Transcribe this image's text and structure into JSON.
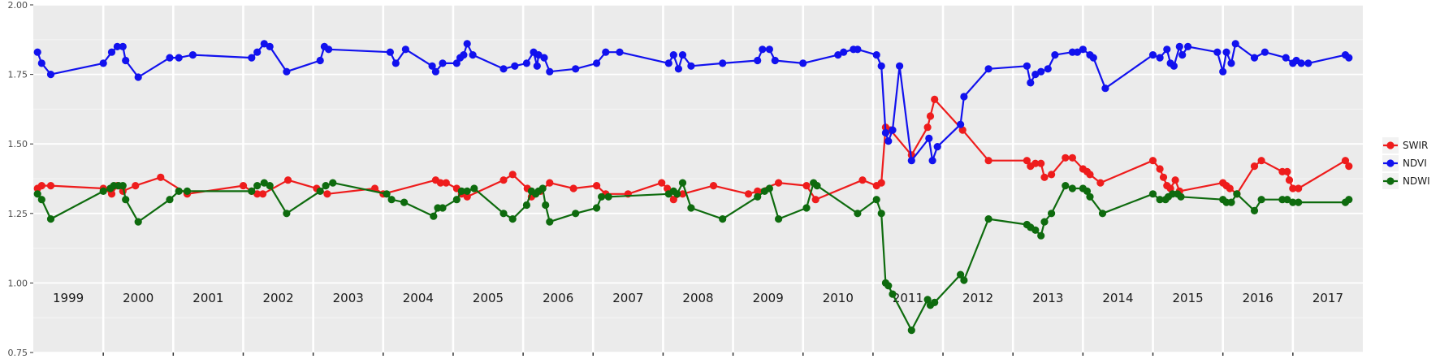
{
  "chart_data": {
    "type": "line",
    "x_unit": "year",
    "xlim": [
      1998.5,
      2017.5
    ],
    "ylim": [
      0.75,
      2.0
    ],
    "y_ticks": [
      {
        "value": 0.75,
        "label": "0.75"
      },
      {
        "value": 1.0,
        "label": "1.00"
      },
      {
        "value": 1.25,
        "label": "1.25"
      },
      {
        "value": 1.5,
        "label": "1.50"
      },
      {
        "value": 1.75,
        "label": "1.75"
      },
      {
        "value": 2.0,
        "label": "2.00"
      }
    ],
    "year_labels": [
      "1999",
      "2000",
      "2001",
      "2002",
      "2003",
      "2004",
      "2005",
      "2006",
      "2007",
      "2008",
      "2009",
      "2010",
      "2011",
      "2012",
      "2013",
      "2014",
      "2015",
      "2016",
      "2017"
    ],
    "grid": true,
    "legend_position": "right",
    "series": [
      {
        "name": "SWIR",
        "color": "#ee1c1c",
        "points": [
          [
            1998.56,
            1.34
          ],
          [
            1998.62,
            1.35
          ],
          [
            1998.75,
            1.35
          ],
          [
            1999.5,
            1.34
          ],
          [
            1999.62,
            1.32
          ],
          [
            1999.7,
            1.35
          ],
          [
            1999.78,
            1.33
          ],
          [
            1999.96,
            1.35
          ],
          [
            2000.32,
            1.38
          ],
          [
            2000.7,
            1.32
          ],
          [
            2001.5,
            1.35
          ],
          [
            2001.62,
            1.33
          ],
          [
            2001.7,
            1.32
          ],
          [
            2001.78,
            1.32
          ],
          [
            2002.14,
            1.37
          ],
          [
            2002.55,
            1.34
          ],
          [
            2002.7,
            1.32
          ],
          [
            2003.38,
            1.34
          ],
          [
            2003.5,
            1.32
          ],
          [
            2004.25,
            1.37
          ],
          [
            2004.32,
            1.36
          ],
          [
            2004.4,
            1.36
          ],
          [
            2004.55,
            1.34
          ],
          [
            2004.62,
            1.32
          ],
          [
            2004.7,
            1.31
          ],
          [
            2005.22,
            1.37
          ],
          [
            2005.35,
            1.39
          ],
          [
            2005.56,
            1.34
          ],
          [
            2005.62,
            1.31
          ],
          [
            2005.75,
            1.33
          ],
          [
            2005.88,
            1.36
          ],
          [
            2006.22,
            1.34
          ],
          [
            2006.55,
            1.35
          ],
          [
            2006.68,
            1.32
          ],
          [
            2007.0,
            1.32
          ],
          [
            2007.48,
            1.36
          ],
          [
            2007.56,
            1.34
          ],
          [
            2007.65,
            1.3
          ],
          [
            2007.78,
            1.32
          ],
          [
            2008.22,
            1.35
          ],
          [
            2008.72,
            1.32
          ],
          [
            2008.85,
            1.33
          ],
          [
            2009.15,
            1.36
          ],
          [
            2009.55,
            1.35
          ],
          [
            2009.68,
            1.3
          ],
          [
            2010.35,
            1.37
          ],
          [
            2010.55,
            1.35
          ],
          [
            2010.62,
            1.36
          ],
          [
            2010.68,
            1.56
          ],
          [
            2010.75,
            1.55
          ],
          [
            2011.05,
            1.46
          ],
          [
            2011.28,
            1.56
          ],
          [
            2011.32,
            1.6
          ],
          [
            2011.38,
            1.66
          ],
          [
            2011.78,
            1.55
          ],
          [
            2012.15,
            1.44
          ],
          [
            2012.7,
            1.44
          ],
          [
            2012.75,
            1.42
          ],
          [
            2012.82,
            1.43
          ],
          [
            2012.9,
            1.43
          ],
          [
            2012.95,
            1.38
          ],
          [
            2013.05,
            1.39
          ],
          [
            2013.25,
            1.45
          ],
          [
            2013.35,
            1.45
          ],
          [
            2013.5,
            1.41
          ],
          [
            2013.56,
            1.4
          ],
          [
            2013.6,
            1.39
          ],
          [
            2013.75,
            1.36
          ],
          [
            2014.5,
            1.44
          ],
          [
            2014.6,
            1.41
          ],
          [
            2014.65,
            1.38
          ],
          [
            2014.7,
            1.35
          ],
          [
            2014.75,
            1.34
          ],
          [
            2014.82,
            1.37
          ],
          [
            2014.88,
            1.33
          ],
          [
            2015.5,
            1.36
          ],
          [
            2015.55,
            1.35
          ],
          [
            2015.6,
            1.34
          ],
          [
            2015.7,
            1.32
          ],
          [
            2015.95,
            1.42
          ],
          [
            2016.05,
            1.44
          ],
          [
            2016.35,
            1.4
          ],
          [
            2016.42,
            1.4
          ],
          [
            2016.45,
            1.37
          ],
          [
            2016.5,
            1.34
          ],
          [
            2016.58,
            1.34
          ],
          [
            2017.25,
            1.44
          ],
          [
            2017.3,
            1.42
          ]
        ]
      },
      {
        "name": "NDVI",
        "color": "#1111ee",
        "points": [
          [
            1998.56,
            1.83
          ],
          [
            1998.62,
            1.79
          ],
          [
            1998.75,
            1.75
          ],
          [
            1999.5,
            1.79
          ],
          [
            1999.62,
            1.83
          ],
          [
            1999.7,
            1.85
          ],
          [
            1999.78,
            1.85
          ],
          [
            1999.82,
            1.8
          ],
          [
            2000.0,
            1.74
          ],
          [
            2000.45,
            1.81
          ],
          [
            2000.58,
            1.81
          ],
          [
            2000.78,
            1.82
          ],
          [
            2001.62,
            1.81
          ],
          [
            2001.7,
            1.83
          ],
          [
            2001.8,
            1.86
          ],
          [
            2001.88,
            1.85
          ],
          [
            2002.12,
            1.76
          ],
          [
            2002.6,
            1.8
          ],
          [
            2002.66,
            1.85
          ],
          [
            2002.72,
            1.84
          ],
          [
            2003.6,
            1.83
          ],
          [
            2003.68,
            1.79
          ],
          [
            2003.82,
            1.84
          ],
          [
            2004.2,
            1.78
          ],
          [
            2004.25,
            1.76
          ],
          [
            2004.35,
            1.79
          ],
          [
            2004.55,
            1.79
          ],
          [
            2004.6,
            1.81
          ],
          [
            2004.65,
            1.82
          ],
          [
            2004.7,
            1.86
          ],
          [
            2004.78,
            1.82
          ],
          [
            2005.22,
            1.77
          ],
          [
            2005.38,
            1.78
          ],
          [
            2005.55,
            1.79
          ],
          [
            2005.65,
            1.83
          ],
          [
            2005.7,
            1.78
          ],
          [
            2005.72,
            1.82
          ],
          [
            2005.8,
            1.81
          ],
          [
            2005.88,
            1.76
          ],
          [
            2006.25,
            1.77
          ],
          [
            2006.55,
            1.79
          ],
          [
            2006.68,
            1.83
          ],
          [
            2006.88,
            1.83
          ],
          [
            2007.58,
            1.79
          ],
          [
            2007.65,
            1.82
          ],
          [
            2007.72,
            1.77
          ],
          [
            2007.78,
            1.82
          ],
          [
            2007.9,
            1.78
          ],
          [
            2008.35,
            1.79
          ],
          [
            2008.85,
            1.8
          ],
          [
            2008.92,
            1.84
          ],
          [
            2009.02,
            1.84
          ],
          [
            2009.1,
            1.8
          ],
          [
            2009.5,
            1.79
          ],
          [
            2010.0,
            1.82
          ],
          [
            2010.08,
            1.83
          ],
          [
            2010.22,
            1.84
          ],
          [
            2010.28,
            1.84
          ],
          [
            2010.88,
            1.78
          ],
          [
            2010.55,
            1.82
          ],
          [
            2010.62,
            1.78
          ],
          [
            2010.68,
            1.54
          ],
          [
            2010.72,
            1.51
          ],
          [
            2010.78,
            1.55
          ],
          [
            2011.05,
            1.44
          ],
          [
            2011.3,
            1.52
          ],
          [
            2011.35,
            1.44
          ],
          [
            2011.42,
            1.49
          ],
          [
            2011.75,
            1.57
          ],
          [
            2011.8,
            1.67
          ],
          [
            2012.15,
            1.77
          ],
          [
            2012.7,
            1.78
          ],
          [
            2012.75,
            1.72
          ],
          [
            2012.82,
            1.75
          ],
          [
            2012.9,
            1.76
          ],
          [
            2013.0,
            1.77
          ],
          [
            2013.1,
            1.82
          ],
          [
            2013.35,
            1.83
          ],
          [
            2013.42,
            1.83
          ],
          [
            2013.5,
            1.84
          ],
          [
            2013.6,
            1.82
          ],
          [
            2013.65,
            1.81
          ],
          [
            2013.82,
            1.7
          ],
          [
            2014.5,
            1.82
          ],
          [
            2014.6,
            1.81
          ],
          [
            2014.7,
            1.84
          ],
          [
            2014.75,
            1.79
          ],
          [
            2014.8,
            1.78
          ],
          [
            2014.88,
            1.85
          ],
          [
            2014.92,
            1.82
          ],
          [
            2015.0,
            1.85
          ],
          [
            2015.42,
            1.83
          ],
          [
            2015.5,
            1.76
          ],
          [
            2015.55,
            1.83
          ],
          [
            2015.62,
            1.79
          ],
          [
            2015.68,
            1.86
          ],
          [
            2015.95,
            1.81
          ],
          [
            2016.1,
            1.83
          ],
          [
            2016.4,
            1.81
          ],
          [
            2016.5,
            1.79
          ],
          [
            2016.55,
            1.8
          ],
          [
            2016.62,
            1.79
          ],
          [
            2016.72,
            1.79
          ],
          [
            2017.25,
            1.82
          ],
          [
            2017.3,
            1.81
          ]
        ]
      },
      {
        "name": "NDWI",
        "color": "#0e6b0e",
        "points": [
          [
            1998.56,
            1.32
          ],
          [
            1998.62,
            1.3
          ],
          [
            1998.75,
            1.23
          ],
          [
            1999.5,
            1.33
          ],
          [
            1999.6,
            1.34
          ],
          [
            1999.65,
            1.35
          ],
          [
            1999.72,
            1.35
          ],
          [
            1999.78,
            1.35
          ],
          [
            1999.82,
            1.3
          ],
          [
            2000.0,
            1.22
          ],
          [
            2000.45,
            1.3
          ],
          [
            2000.58,
            1.33
          ],
          [
            2000.7,
            1.33
          ],
          [
            2001.62,
            1.33
          ],
          [
            2001.7,
            1.35
          ],
          [
            2001.8,
            1.36
          ],
          [
            2001.88,
            1.35
          ],
          [
            2002.12,
            1.25
          ],
          [
            2002.6,
            1.33
          ],
          [
            2002.68,
            1.35
          ],
          [
            2002.78,
            1.36
          ],
          [
            2003.55,
            1.32
          ],
          [
            2003.62,
            1.3
          ],
          [
            2003.8,
            1.29
          ],
          [
            2004.22,
            1.24
          ],
          [
            2004.28,
            1.27
          ],
          [
            2004.35,
            1.27
          ],
          [
            2004.55,
            1.3
          ],
          [
            2004.62,
            1.33
          ],
          [
            2004.7,
            1.33
          ],
          [
            2004.8,
            1.34
          ],
          [
            2005.22,
            1.25
          ],
          [
            2005.35,
            1.23
          ],
          [
            2005.55,
            1.28
          ],
          [
            2005.62,
            1.33
          ],
          [
            2005.68,
            1.32
          ],
          [
            2005.72,
            1.33
          ],
          [
            2005.78,
            1.34
          ],
          [
            2005.82,
            1.28
          ],
          [
            2005.88,
            1.22
          ],
          [
            2006.25,
            1.25
          ],
          [
            2006.55,
            1.27
          ],
          [
            2006.62,
            1.31
          ],
          [
            2006.72,
            1.31
          ],
          [
            2007.58,
            1.32
          ],
          [
            2007.65,
            1.33
          ],
          [
            2007.7,
            1.32
          ],
          [
            2007.78,
            1.36
          ],
          [
            2007.9,
            1.27
          ],
          [
            2008.35,
            1.23
          ],
          [
            2008.85,
            1.31
          ],
          [
            2008.95,
            1.33
          ],
          [
            2009.02,
            1.34
          ],
          [
            2009.15,
            1.23
          ],
          [
            2009.55,
            1.27
          ],
          [
            2009.65,
            1.36
          ],
          [
            2009.7,
            1.35
          ],
          [
            2010.28,
            1.25
          ],
          [
            2010.55,
            1.3
          ],
          [
            2010.62,
            1.25
          ],
          [
            2010.68,
            1.0
          ],
          [
            2010.72,
            0.99
          ],
          [
            2010.78,
            0.96
          ],
          [
            2011.05,
            0.83
          ],
          [
            2011.28,
            0.94
          ],
          [
            2011.32,
            0.92
          ],
          [
            2011.38,
            0.93
          ],
          [
            2011.75,
            1.03
          ],
          [
            2011.8,
            1.01
          ],
          [
            2012.15,
            1.23
          ],
          [
            2012.7,
            1.21
          ],
          [
            2012.75,
            1.2
          ],
          [
            2012.82,
            1.19
          ],
          [
            2012.9,
            1.17
          ],
          [
            2012.95,
            1.22
          ],
          [
            2013.05,
            1.25
          ],
          [
            2013.25,
            1.35
          ],
          [
            2013.35,
            1.34
          ],
          [
            2013.5,
            1.34
          ],
          [
            2013.56,
            1.33
          ],
          [
            2013.6,
            1.31
          ],
          [
            2013.78,
            1.25
          ],
          [
            2014.5,
            1.32
          ],
          [
            2014.6,
            1.3
          ],
          [
            2014.68,
            1.3
          ],
          [
            2014.72,
            1.31
          ],
          [
            2014.78,
            1.32
          ],
          [
            2014.85,
            1.32
          ],
          [
            2014.9,
            1.31
          ],
          [
            2015.5,
            1.3
          ],
          [
            2015.55,
            1.29
          ],
          [
            2015.62,
            1.29
          ],
          [
            2015.7,
            1.32
          ],
          [
            2015.95,
            1.26
          ],
          [
            2016.05,
            1.3
          ],
          [
            2016.35,
            1.3
          ],
          [
            2016.42,
            1.3
          ],
          [
            2016.5,
            1.29
          ],
          [
            2016.58,
            1.29
          ],
          [
            2017.25,
            1.29
          ],
          [
            2017.3,
            1.3
          ]
        ]
      }
    ]
  }
}
